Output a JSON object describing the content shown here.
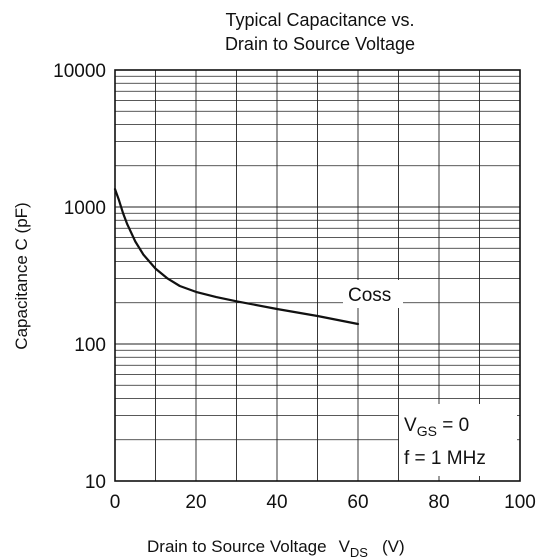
{
  "chart_data": {
    "type": "line",
    "title_line1": "Typical Capacitance vs.",
    "title_line2": "Drain to Source Voltage",
    "xlabel": "Drain to Source Voltage",
    "xlabel_symbol": "V",
    "xlabel_subscript": "DS",
    "xlabel_unit": "(V)",
    "ylabel": "Capacitance  C  (pF)",
    "xlim": [
      0,
      100
    ],
    "ylim": [
      10,
      10000
    ],
    "yscale": "log",
    "grid": true,
    "xticks": [
      0,
      20,
      40,
      60,
      80,
      100
    ],
    "yticks": [
      10,
      100,
      1000,
      10000
    ],
    "xtick_labels": [
      "0",
      "20",
      "40",
      "60",
      "80",
      "100"
    ],
    "ytick_labels": [
      "10",
      "100",
      "1000",
      "10000"
    ],
    "series": [
      {
        "name": "Coss",
        "x": [
          0,
          1,
          2,
          3,
          5,
          7,
          10,
          13,
          16,
          20,
          25,
          30,
          40,
          50,
          60
        ],
        "y": [
          1350,
          1120,
          900,
          750,
          560,
          450,
          355,
          300,
          265,
          240,
          220,
          205,
          180,
          160,
          140
        ]
      }
    ],
    "annotations": {
      "series_label": "Coss",
      "cond1_symbol": "V",
      "cond1_subscript": "GS",
      "cond1_value": " = 0",
      "cond2": "f = 1 MHz"
    }
  }
}
